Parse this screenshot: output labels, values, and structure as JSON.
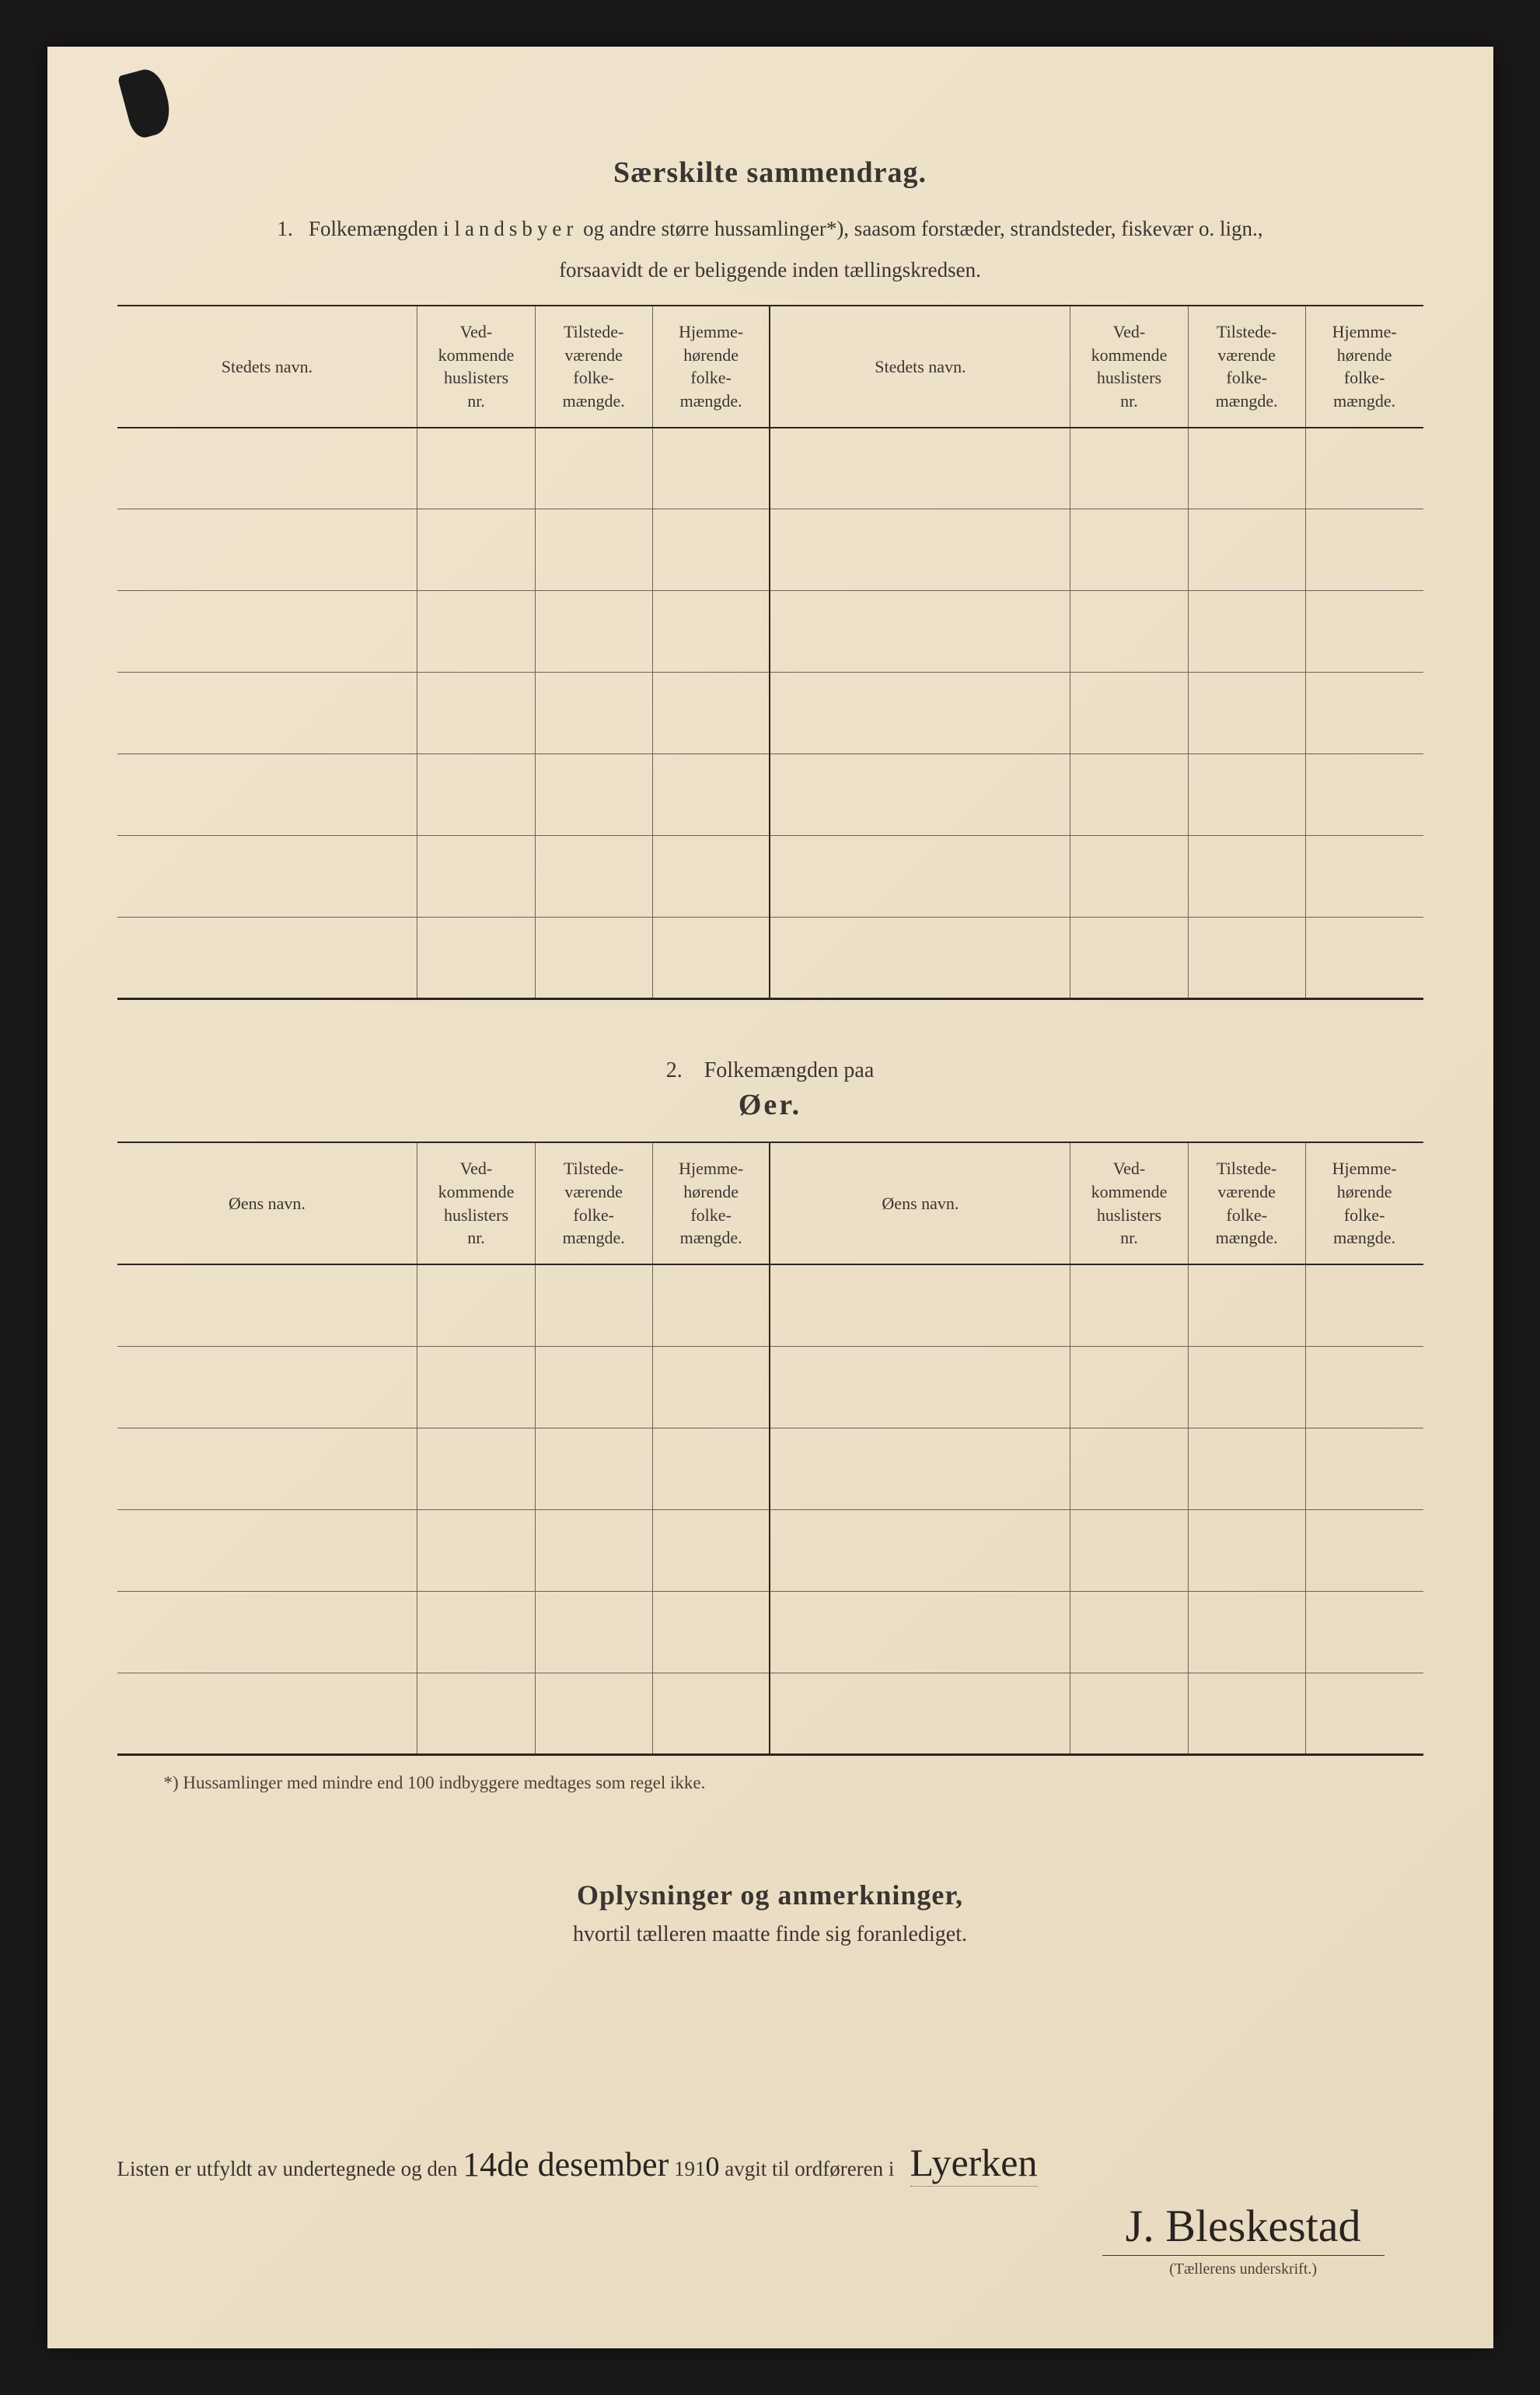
{
  "title": "Særskilte sammendrag.",
  "section1": {
    "number": "1.",
    "intro_part1": "Folkemængden i ",
    "intro_spaced": "landsbyer",
    "intro_part2": " og andre større hussamlinger*), saasom forstæder, strandsteder, fiskevær o. lign.,",
    "intro_line2": "forsaavidt de er beliggende inden tællingskredsen.",
    "headers": {
      "name": "Stedets navn.",
      "huslisters": "Ved-\nkommende\nhuslisters\nnr.",
      "tilstede": "Tilstede-\nværende\nfolke-\nmængde.",
      "hjemme": "Hjemme-\nhørende\nfolke-\nmængde."
    },
    "rows": 7
  },
  "section2": {
    "number": "2.",
    "label": "Folkemængden paa",
    "title": "Øer.",
    "headers": {
      "name": "Øens navn.",
      "huslisters": "Ved-\nkommende\nhuslisters\nnr.",
      "tilstede": "Tilstede-\nværende\nfolke-\nmængde.",
      "hjemme": "Hjemme-\nhørende\nfolke-\nmængde."
    },
    "rows": 6
  },
  "footnote": "*) Hussamlinger med mindre end 100 indbyggere medtages som regel ikke.",
  "section3": {
    "title": "Oplysninger og anmerkninger,",
    "sub": "hvortil tælleren maatte finde sig foranlediget."
  },
  "signature": {
    "prefix": "Listen er utfyldt av undertegnede og den",
    "date_hand": "14de desember",
    "year_prefix": "191",
    "year_digit": "0",
    "mid": "avgit til ordføreren i",
    "place_hand": "Lyerken",
    "name_hand": "J. Bleskestad",
    "label": "(Tællerens underskrift.)"
  },
  "colors": {
    "page_bg": "#ede0c8",
    "text": "#3a3530",
    "border_heavy": "#2a2622",
    "border_light": "#6b6258",
    "ink": "#2a2420"
  }
}
